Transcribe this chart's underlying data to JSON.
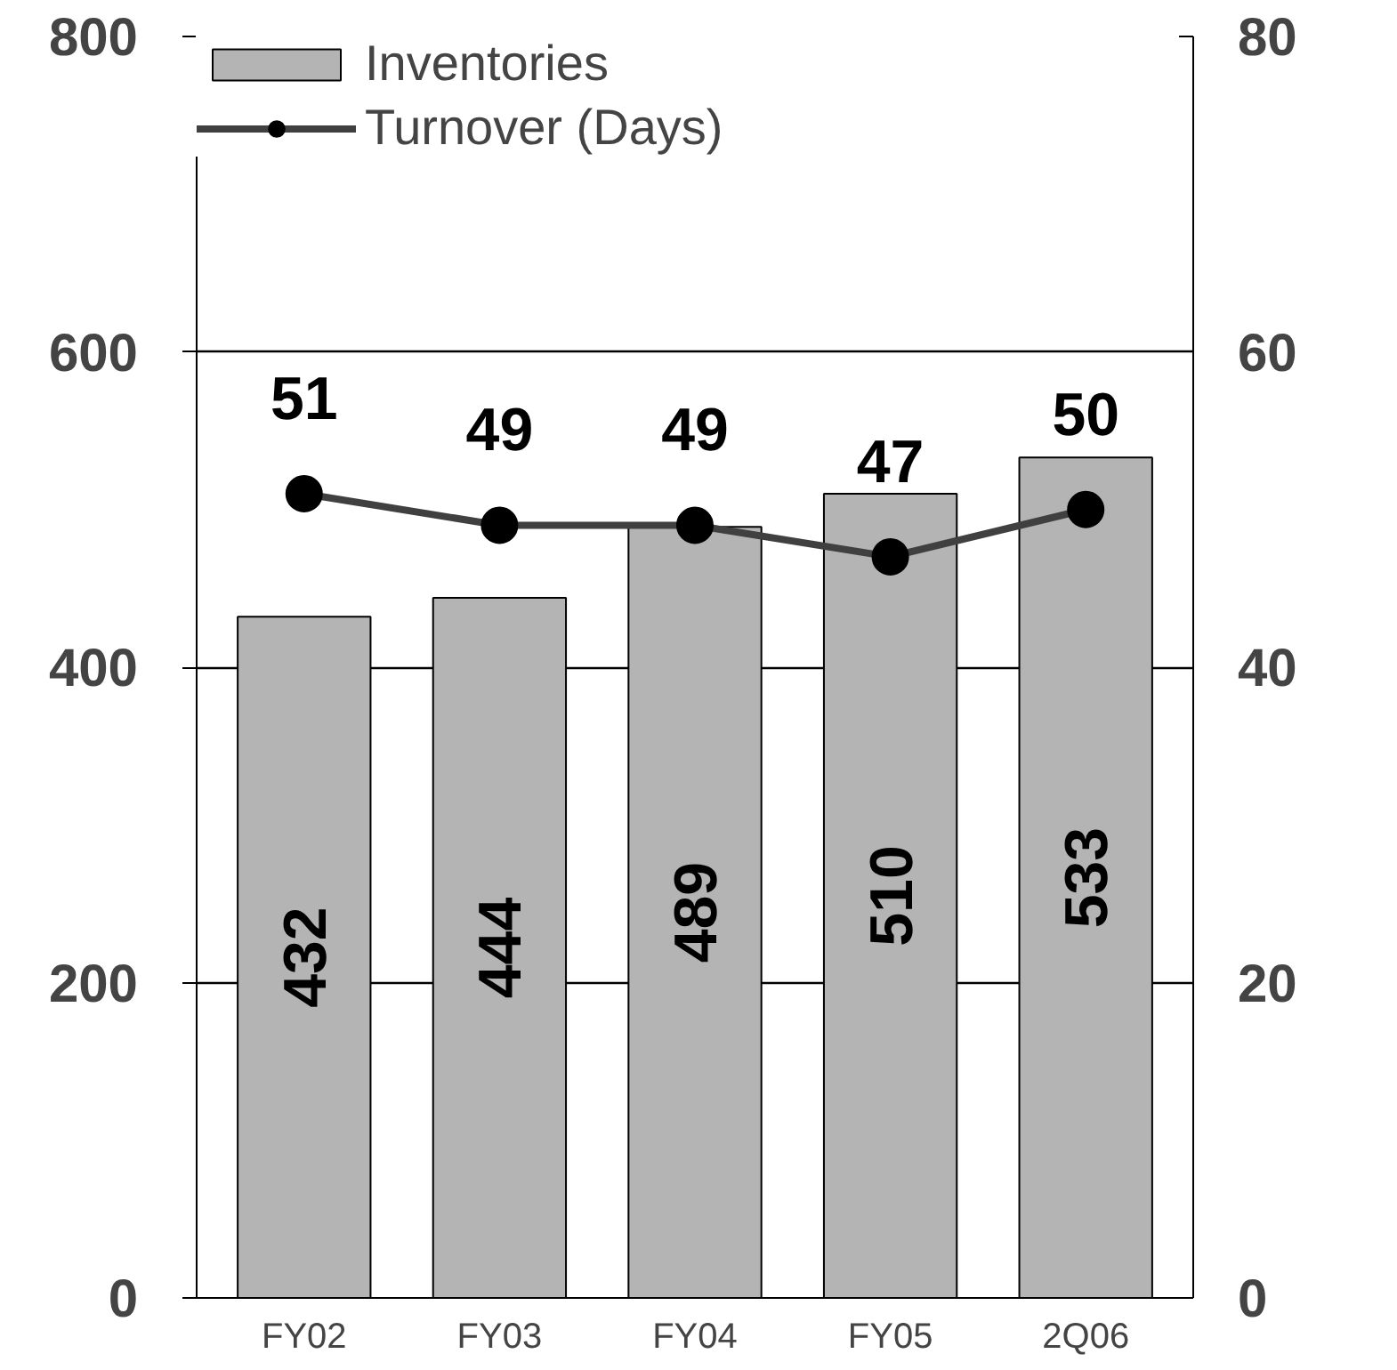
{
  "chart_data": {
    "type": "bar",
    "categories": [
      "FY02",
      "FY03",
      "FY04",
      "FY05",
      "2Q06"
    ],
    "series": [
      {
        "name": "Inventories",
        "color": "#b4b4b4",
        "values": [
          432,
          444,
          489,
          510,
          533
        ]
      },
      {
        "name": "Turnover (Days)",
        "type": "line",
        "axis": "y2",
        "color": "#404040",
        "values": [
          51,
          49,
          49,
          47,
          50
        ]
      }
    ],
    "ylim": [
      0,
      800
    ],
    "yticks": [
      0,
      200,
      400,
      600,
      800
    ],
    "y2lim": [
      0,
      80
    ],
    "y2ticks": [
      0,
      20,
      40,
      60,
      80
    ],
    "grid": "y",
    "legend": "top left",
    "marker": "circle",
    "line_style": "solid",
    "data_labels": true
  }
}
